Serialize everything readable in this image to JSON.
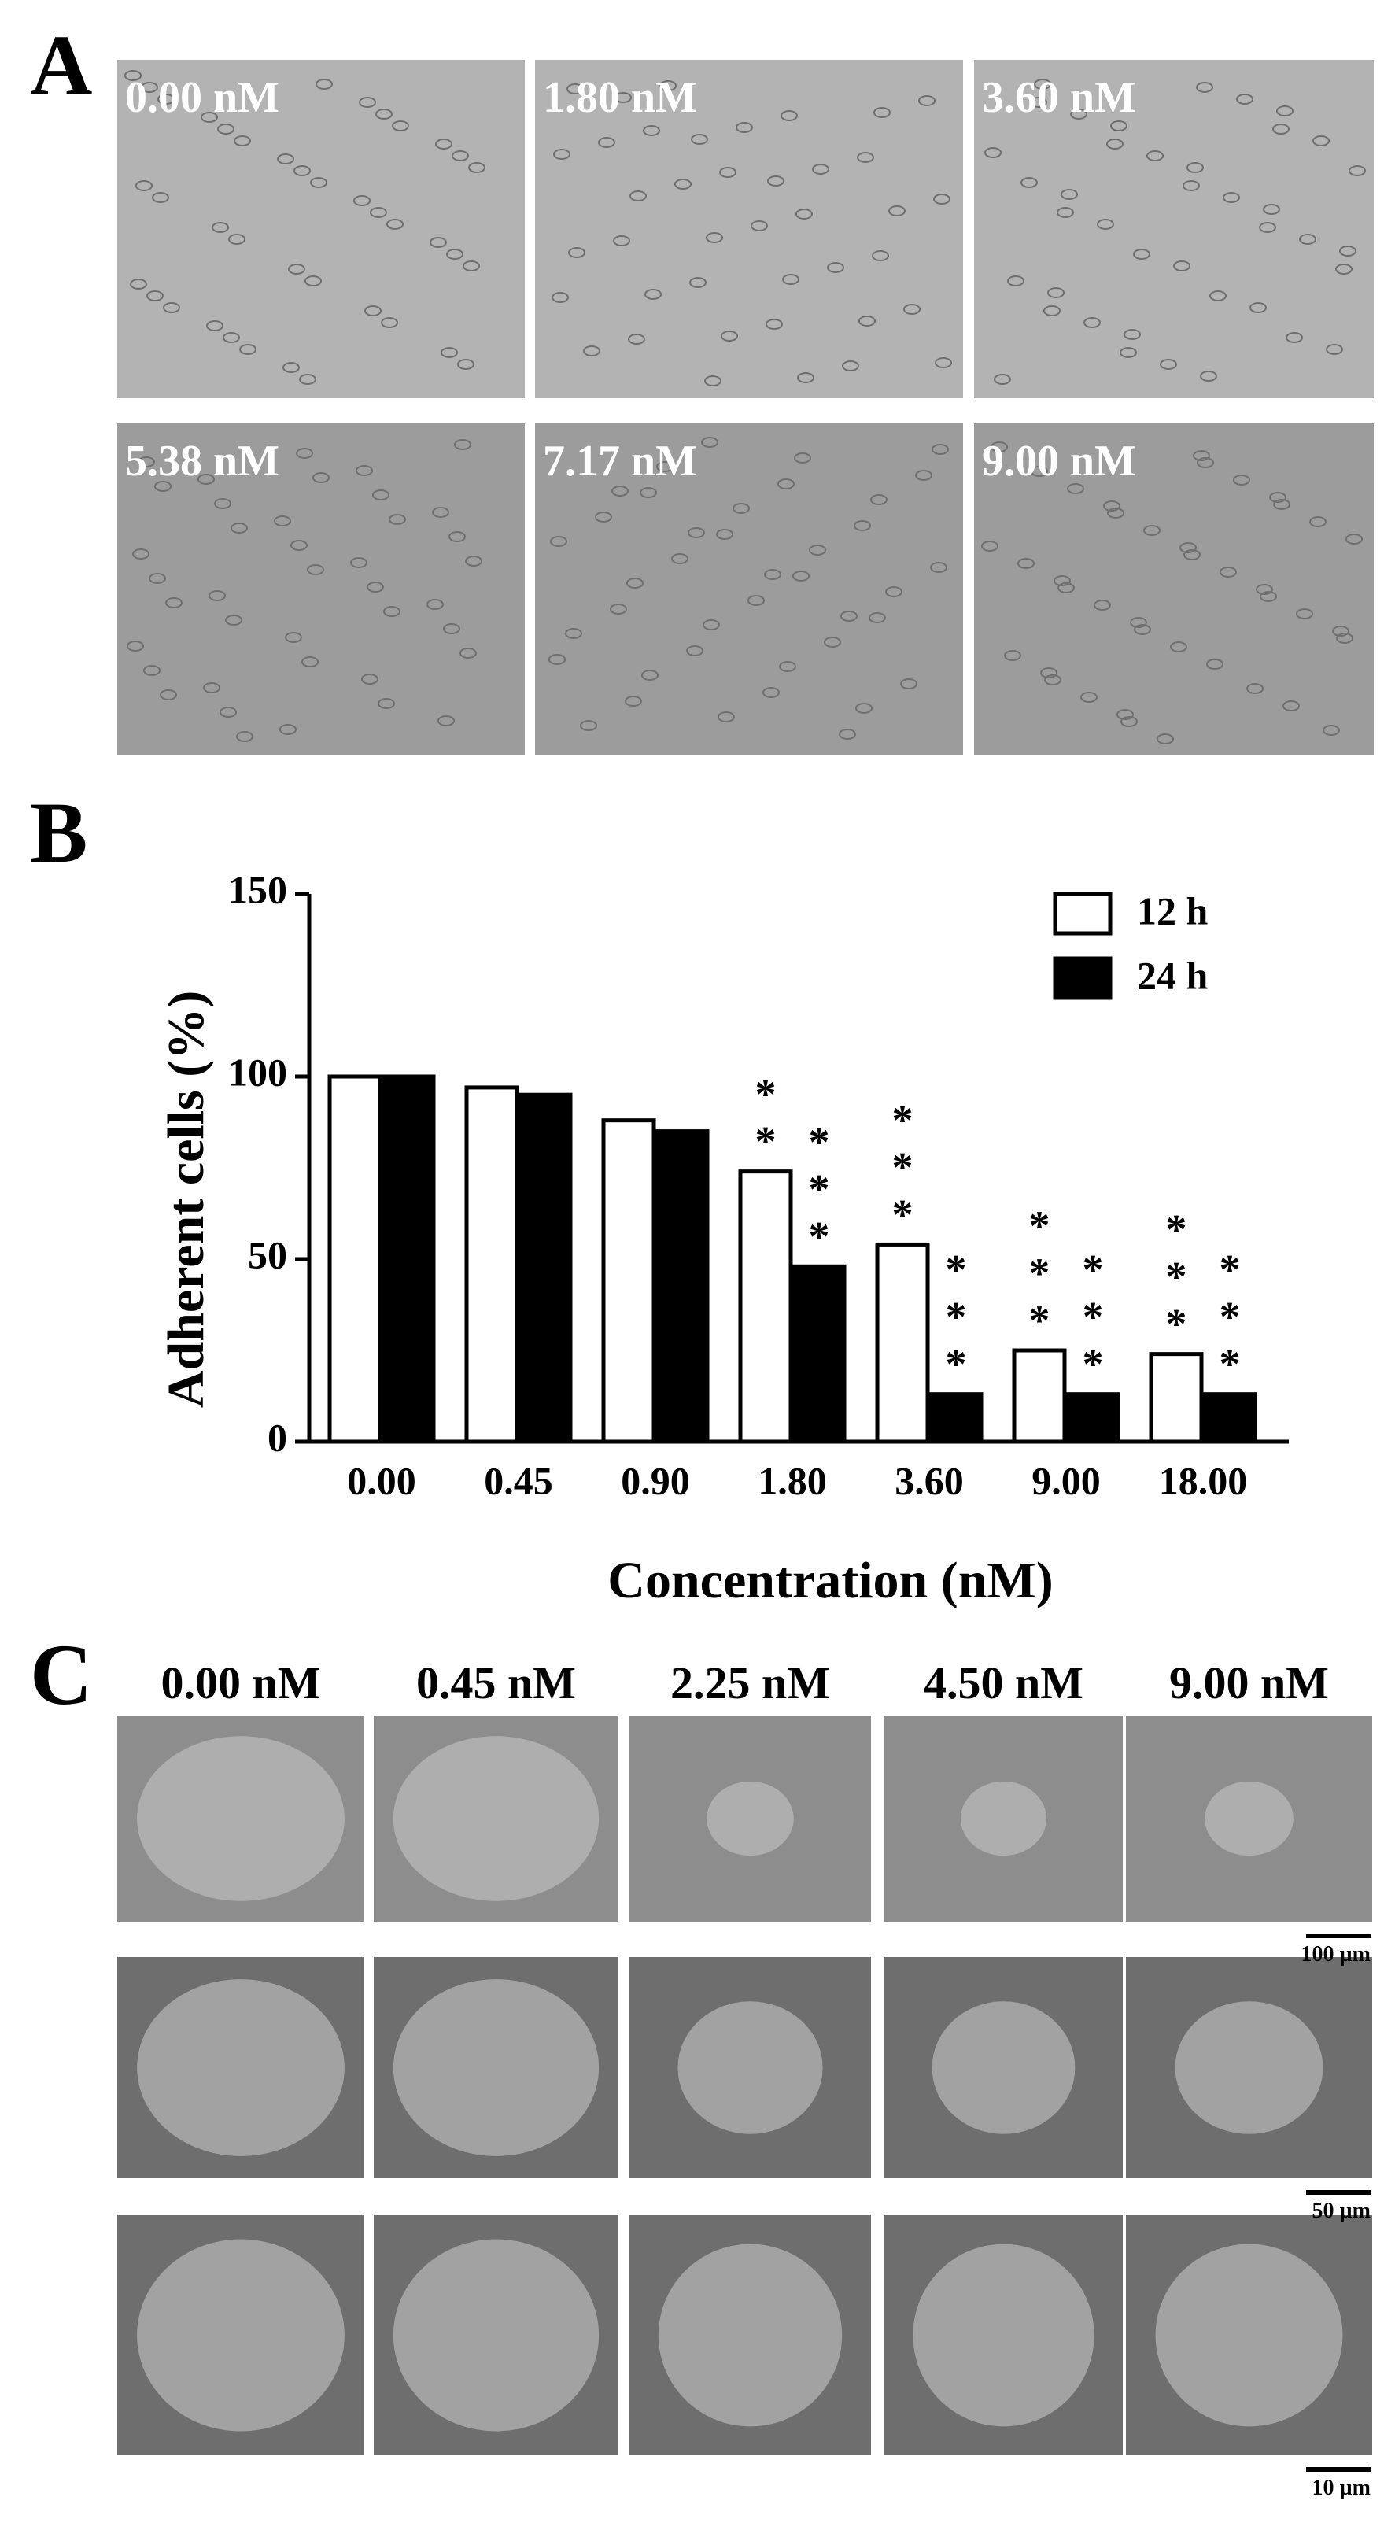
{
  "panel_a": {
    "label": "A",
    "images": [
      {
        "label": "0.00 nM"
      },
      {
        "label": "1.80 nM"
      },
      {
        "label": "3.60 nM"
      },
      {
        "label": "5.38 nM"
      },
      {
        "label": "7.17 nM"
      },
      {
        "label": "9.00 nM"
      }
    ]
  },
  "panel_b": {
    "label": "B"
  },
  "chart_data": {
    "type": "bar",
    "x_label": "Concentration (nM)",
    "y_label": "Adherent cells (%)",
    "categories": [
      "0.00",
      "0.45",
      "0.90",
      "1.80",
      "3.60",
      "9.00",
      "18.00"
    ],
    "series": [
      {
        "name": "12 h",
        "color": "#ffffff",
        "values": [
          100,
          97,
          88,
          74,
          54,
          25,
          24
        ],
        "significance": [
          null,
          null,
          null,
          "**",
          "***",
          "***",
          "***"
        ]
      },
      {
        "name": "24 h",
        "color": "#000000",
        "values": [
          100,
          95,
          85,
          48,
          13,
          13,
          13
        ],
        "significance": [
          null,
          null,
          null,
          "***",
          "***",
          "***",
          "***"
        ]
      }
    ],
    "ylim": [
      0,
      150
    ],
    "yticks": [
      0,
      50,
      100,
      150
    ],
    "grid": false,
    "legend": "top-right"
  },
  "panel_c": {
    "label": "C",
    "columns": [
      "0.00 nM",
      "0.45 nM",
      "2.25 nM",
      "4.50 nM",
      "9.00 nM"
    ],
    "scale_bars": [
      "100 µm",
      "50 µm",
      "10 µm"
    ]
  }
}
